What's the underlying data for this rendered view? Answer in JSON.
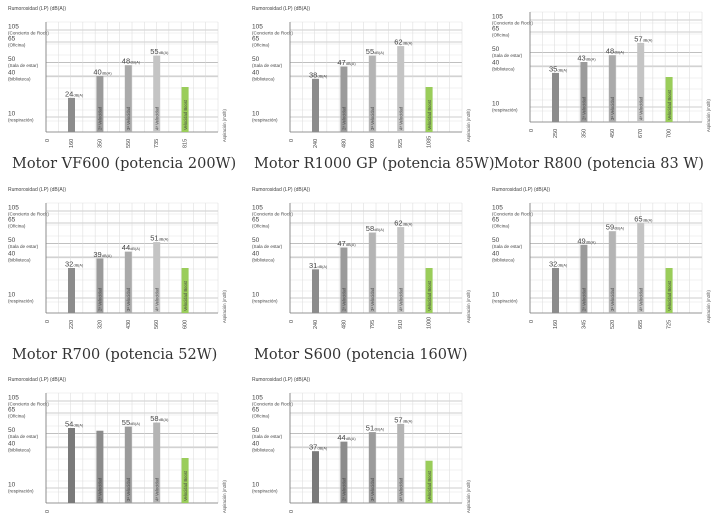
{
  "motor_titles": [
    "Motor VF600 (potencia 200W)",
    "Motor R1000 GP (potencia 85W)",
    "Motor R800 (potencia 83 W)",
    "Motor R700 (potencia 52W)",
    "Motor S600 (potencia 160W)"
  ],
  "chart_data": [
    {
      "type": "bar",
      "title": "",
      "ylabel": "Rumorosidad (LP) (dB(A))",
      "xlabel": "Aspiración (m3/h)",
      "reference_levels": [
        {
          "value": 105,
          "label": "(Concierto de Rock)"
        },
        {
          "value": 65,
          "label": "(Oficina)"
        },
        {
          "value": 50,
          "label": "(Sala de estar)"
        },
        {
          "value": 40,
          "label": "(biblioteca)"
        },
        {
          "value": 10,
          "label": "(respiración)"
        }
      ],
      "x_ticks": [
        "0",
        "160",
        "350",
        "550",
        "735",
        "815"
      ],
      "bars": [
        {
          "x_label": "160",
          "value": 24,
          "value_label": "24",
          "unit": "dB(A)",
          "speed": "",
          "color": "#8c8c8c"
        },
        {
          "x_label": "350",
          "value": 40,
          "value_label": "40",
          "unit": "dB(A)",
          "speed": "2ª Velocidad",
          "color": "#9b9b9b"
        },
        {
          "x_label": "550",
          "value": 48,
          "value_label": "48",
          "unit": "dB(A)",
          "speed": "3ª Velocidad",
          "color": "#aaaaaa"
        },
        {
          "x_label": "735",
          "value": 55,
          "value_label": "55",
          "unit": "dB(A)",
          "speed": "4ª Velocidad",
          "color": "#c4c4c4"
        },
        {
          "x_label": "815",
          "value": 32,
          "value_label": "",
          "unit": "",
          "speed": "Velocidad Boost",
          "color": "#9acd5a"
        }
      ]
    },
    {
      "type": "bar",
      "title": "",
      "ylabel": "Rumorosidad (LP) (dB(A))",
      "xlabel": "Aspiración (m3/h)",
      "reference_levels": [
        {
          "value": 105,
          "label": "(Concierto de Rock)"
        },
        {
          "value": 65,
          "label": "(Oficina)"
        },
        {
          "value": 50,
          "label": "(Sala de estar)"
        },
        {
          "value": 40,
          "label": "(biblioteca)"
        },
        {
          "value": 10,
          "label": "(respiración)"
        }
      ],
      "x_ticks": [
        "0",
        "240",
        "480",
        "690",
        "925",
        "1085"
      ],
      "bars": [
        {
          "x_label": "240",
          "value": 38,
          "value_label": "38",
          "unit": "dB(A)",
          "speed": "",
          "color": "#8c8c8c"
        },
        {
          "x_label": "480",
          "value": 47,
          "value_label": "47",
          "unit": "dB(A)",
          "speed": "2ª Velocidad",
          "color": "#9b9b9b"
        },
        {
          "x_label": "690",
          "value": 55,
          "value_label": "55",
          "unit": "dB(A)",
          "speed": "3ª Velocidad",
          "color": "#b4b4b4"
        },
        {
          "x_label": "925",
          "value": 62,
          "value_label": "62",
          "unit": "dB(A)",
          "speed": "4ª Velocidad",
          "color": "#c4c4c4"
        },
        {
          "x_label": "1085",
          "value": 32,
          "value_label": "",
          "unit": "",
          "speed": "Velocidad Boost",
          "color": "#9acd5a"
        }
      ]
    },
    {
      "type": "bar",
      "title": "",
      "ylabel": "",
      "xlabel": "Aspiración (m3/h)",
      "reference_levels": [
        {
          "value": 105,
          "label": "(Concierto de Rock)"
        },
        {
          "value": 65,
          "label": "(Oficina)"
        },
        {
          "value": 50,
          "label": "(Sala de estar)"
        },
        {
          "value": 40,
          "label": "(biblioteca)"
        },
        {
          "value": 10,
          "label": "(respiración)"
        }
      ],
      "x_ticks": [
        "0",
        "250",
        "350",
        "450",
        "670",
        "700"
      ],
      "bars": [
        {
          "x_label": "250",
          "value": 35,
          "value_label": "35",
          "unit": "dB(A)",
          "speed": "",
          "color": "#8c8c8c"
        },
        {
          "x_label": "350",
          "value": 43,
          "value_label": "43",
          "unit": "dB(A)",
          "speed": "2ª Velocidad",
          "color": "#9b9b9b"
        },
        {
          "x_label": "450",
          "value": 48,
          "value_label": "48",
          "unit": "dB(A)",
          "speed": "3ª Velocidad",
          "color": "#aaaaaa"
        },
        {
          "x_label": "670",
          "value": 57,
          "value_label": "57",
          "unit": "dB(A)",
          "speed": "4ª Velocidad",
          "color": "#c4c4c4"
        },
        {
          "x_label": "700",
          "value": 32,
          "value_label": "",
          "unit": "",
          "speed": "Velocidad Boost",
          "color": "#9acd5a"
        }
      ]
    },
    {
      "type": "bar",
      "title": "",
      "ylabel": "Rumorosidad (LP) (dB(A))",
      "xlabel": "Aspiración (m3/h)",
      "reference_levels": [
        {
          "value": 105,
          "label": "(Concierto de Rock)"
        },
        {
          "value": 65,
          "label": "(Oficina)"
        },
        {
          "value": 50,
          "label": "(Sala de estar)"
        },
        {
          "value": 40,
          "label": "(biblioteca)"
        },
        {
          "value": 10,
          "label": "(respiración)"
        }
      ],
      "x_ticks": [
        "0",
        "220",
        "320",
        "430",
        "560",
        "600"
      ],
      "bars": [
        {
          "x_label": "220",
          "value": 32,
          "value_label": "32",
          "unit": "dB(A)",
          "speed": "",
          "color": "#8c8c8c"
        },
        {
          "x_label": "320",
          "value": 39,
          "value_label": "39",
          "unit": "dB(A)",
          "speed": "2ª Velocidad",
          "color": "#9b9b9b"
        },
        {
          "x_label": "430",
          "value": 44,
          "value_label": "44",
          "unit": "dB(A)",
          "speed": "3ª Velocidad",
          "color": "#aaaaaa"
        },
        {
          "x_label": "560",
          "value": 51,
          "value_label": "51",
          "unit": "dB(A)",
          "speed": "4ª Velocidad",
          "color": "#c4c4c4"
        },
        {
          "x_label": "600",
          "value": 32,
          "value_label": "",
          "unit": "",
          "speed": "Velocidad Boost",
          "color": "#9acd5a"
        }
      ]
    },
    {
      "type": "bar",
      "title": "",
      "ylabel": "Rumorosidad (LP) (dB(A))",
      "xlabel": "Aspiración (m3/h)",
      "reference_levels": [
        {
          "value": 105,
          "label": "(Concierto de Rock)"
        },
        {
          "value": 65,
          "label": "(Oficina)"
        },
        {
          "value": 50,
          "label": "(Sala de estar)"
        },
        {
          "value": 40,
          "label": "(biblioteca)"
        },
        {
          "value": 10,
          "label": "(respiración)"
        }
      ],
      "x_ticks": [
        "0",
        "240",
        "480",
        "795",
        "910",
        "1000"
      ],
      "bars": [
        {
          "x_label": "240",
          "value": 31,
          "value_label": "31",
          "unit": "dB(A)",
          "speed": "",
          "color": "#8c8c8c"
        },
        {
          "x_label": "480",
          "value": 47,
          "value_label": "47",
          "unit": "dB(A)",
          "speed": "2ª Velocidad",
          "color": "#9b9b9b"
        },
        {
          "x_label": "795",
          "value": 58,
          "value_label": "58",
          "unit": "dB(A)",
          "speed": "3ª Velocidad",
          "color": "#b4b4b4"
        },
        {
          "x_label": "910",
          "value": 62,
          "value_label": "62",
          "unit": "dB(A)",
          "speed": "4ª Velocidad",
          "color": "#c4c4c4"
        },
        {
          "x_label": "1000",
          "value": 32,
          "value_label": "",
          "unit": "",
          "speed": "Velocidad Boost",
          "color": "#9acd5a"
        }
      ]
    },
    {
      "type": "bar",
      "title": "",
      "ylabel": "Rumorosidad (LP) (dB(A))",
      "xlabel": "Aspiración (m3/h)",
      "reference_levels": [
        {
          "value": 105,
          "label": "(Concierto de Rock)"
        },
        {
          "value": 65,
          "label": "(Oficina)"
        },
        {
          "value": 50,
          "label": "(Sala de estar)"
        },
        {
          "value": 40,
          "label": "(biblioteca)"
        },
        {
          "value": 10,
          "label": "(respiración)"
        }
      ],
      "x_ticks": [
        "0",
        "160",
        "345",
        "520",
        "685",
        "725"
      ],
      "bars": [
        {
          "x_label": "160",
          "value": 32,
          "value_label": "32",
          "unit": "dB(A)",
          "speed": "",
          "color": "#8c8c8c"
        },
        {
          "x_label": "345",
          "value": 49,
          "value_label": "49",
          "unit": "dB(A)",
          "speed": "2ª Velocidad",
          "color": "#9b9b9b"
        },
        {
          "x_label": "520",
          "value": 59,
          "value_label": "59",
          "unit": "dB(A)",
          "speed": "3ª Velocidad",
          "color": "#b4b4b4"
        },
        {
          "x_label": "685",
          "value": 65,
          "value_label": "65",
          "unit": "dB(A)",
          "speed": "4ª Velocidad",
          "color": "#c4c4c4"
        },
        {
          "x_label": "725",
          "value": 32,
          "value_label": "",
          "unit": "",
          "speed": "Velocidad Boost",
          "color": "#9acd5a"
        }
      ]
    },
    {
      "type": "bar",
      "title": "",
      "ylabel": "Rumorosidad (LP) (dB(A))",
      "xlabel": "Aspiración (m3/h)",
      "reference_levels": [
        {
          "value": 105,
          "label": "(Concierto de Rock)"
        },
        {
          "value": 65,
          "label": "(Oficina)"
        },
        {
          "value": 50,
          "label": "(Sala de estar)"
        },
        {
          "value": 40,
          "label": "(biblioteca)"
        },
        {
          "value": 10,
          "label": "(respiración)"
        }
      ],
      "x_ticks": [],
      "bars": [
        {
          "x_label": "",
          "value": 54,
          "value_label": "54",
          "unit": "dB(A)",
          "speed": "",
          "color": "#7a7a7a"
        },
        {
          "x_label": "",
          "value": 52,
          "value_label": "",
          "unit": "",
          "speed": "2ª Velocidad",
          "color": "#8c8c8c"
        },
        {
          "x_label": "",
          "value": 55,
          "value_label": "55",
          "unit": "dB(A)",
          "speed": "3ª Velocidad",
          "color": "#9b9b9b"
        },
        {
          "x_label": "",
          "value": 58,
          "value_label": "58",
          "unit": "dB(A)",
          "speed": "4ª Velocidad",
          "color": "#b4b4b4"
        },
        {
          "x_label": "",
          "value": 32,
          "value_label": "",
          "unit": "",
          "speed": "Velocidad Boost",
          "color": "#9acd5a"
        }
      ]
    },
    {
      "type": "bar",
      "title": "",
      "ylabel": "Rumorosidad (LP) (dB(A))",
      "xlabel": "Aspiración (m3/h)",
      "reference_levels": [
        {
          "value": 105,
          "label": "(Concierto de Rock)"
        },
        {
          "value": 65,
          "label": "(Oficina)"
        },
        {
          "value": 50,
          "label": "(Sala de estar)"
        },
        {
          "value": 40,
          "label": "(biblioteca)"
        },
        {
          "value": 10,
          "label": "(respiración)"
        }
      ],
      "x_ticks": [],
      "bars": [
        {
          "x_label": "",
          "value": 37,
          "value_label": "37",
          "unit": "dB(A)",
          "speed": "",
          "color": "#7a7a7a"
        },
        {
          "x_label": "",
          "value": 44,
          "value_label": "44",
          "unit": "dB(A)",
          "speed": "2ª Velocidad",
          "color": "#8c8c8c"
        },
        {
          "x_label": "",
          "value": 51,
          "value_label": "51",
          "unit": "dB(A)",
          "speed": "3ª Velocidad",
          "color": "#9b9b9b"
        },
        {
          "x_label": "",
          "value": 57,
          "value_label": "57",
          "unit": "dB(A)",
          "speed": "4ª Velocidad",
          "color": "#b4b4b4"
        },
        {
          "x_label": "",
          "value": 30,
          "value_label": "",
          "unit": "",
          "speed": "Velocidad Boost",
          "color": "#9acd5a"
        }
      ]
    }
  ]
}
